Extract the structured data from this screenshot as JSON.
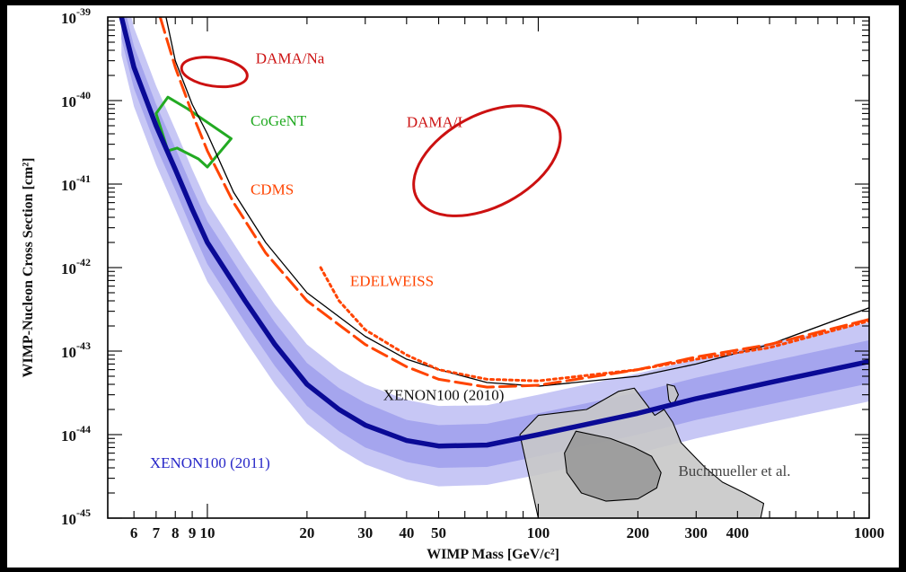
{
  "chart_data": {
    "type": "line",
    "xscale": "log",
    "yscale": "log",
    "xlim": [
      5,
      1000
    ],
    "ylim": [
      1e-45,
      1e-39
    ],
    "xlabel": "WIMP Mass [GeV/c²]",
    "ylabel": "WIMP-Nucleon Cross Section [cm²]",
    "x_ticks": [
      "6",
      "7",
      "8",
      "9",
      "10",
      "20",
      "30",
      "40",
      "50",
      "100",
      "200",
      "300",
      "400",
      "1000"
    ],
    "y_ticks": [
      {
        "base": "10",
        "exp": "-39"
      },
      {
        "base": "10",
        "exp": "-40"
      },
      {
        "base": "10",
        "exp": "-41"
      },
      {
        "base": "10",
        "exp": "-42"
      },
      {
        "base": "10",
        "exp": "-43"
      },
      {
        "base": "10",
        "exp": "-44"
      },
      {
        "base": "10",
        "exp": "-45"
      }
    ],
    "series": [
      {
        "name": "XENON100 (2011)",
        "color": "#0a0a96",
        "style": "thick",
        "points": [
          [
            5.5,
            1e-39
          ],
          [
            6,
            2.5e-40
          ],
          [
            7,
            5e-41
          ],
          [
            8,
            1.5e-41
          ],
          [
            9,
            5e-42
          ],
          [
            10,
            2e-42
          ],
          [
            13,
            4e-43
          ],
          [
            16,
            1.2e-43
          ],
          [
            20,
            4e-44
          ],
          [
            25,
            2e-44
          ],
          [
            30,
            1.3e-44
          ],
          [
            40,
            8.5e-45
          ],
          [
            50,
            7.3e-45
          ],
          [
            70,
            7.5e-45
          ],
          [
            100,
            1e-44
          ],
          [
            200,
            1.8e-44
          ],
          [
            300,
            2.7e-44
          ],
          [
            500,
            4.2e-44
          ],
          [
            1000,
            7.5e-44
          ]
        ],
        "band_1sigma": [
          [
            5.5,
            1.8e-39,
            5.5e-40
          ],
          [
            6,
            4.5e-40,
            1.4e-40
          ],
          [
            7,
            9e-41,
            2.8e-41
          ],
          [
            8,
            2.7e-41,
            8.5e-42
          ],
          [
            9,
            9e-42,
            2.8e-42
          ],
          [
            10,
            3.6e-42,
            1.1e-42
          ],
          [
            13,
            7.2e-43,
            2.2e-43
          ],
          [
            16,
            2.2e-43,
            6.6e-44
          ],
          [
            20,
            7.2e-44,
            2.2e-44
          ],
          [
            25,
            3.6e-44,
            1.1e-44
          ],
          [
            30,
            2.4e-44,
            7e-45
          ],
          [
            40,
            1.5e-44,
            4.7e-45
          ],
          [
            50,
            1.3e-44,
            4e-45
          ],
          [
            70,
            1.35e-44,
            4.1e-45
          ],
          [
            100,
            1.8e-44,
            5.5e-45
          ],
          [
            200,
            3.2e-44,
            1e-44
          ],
          [
            300,
            4.8e-44,
            1.5e-44
          ],
          [
            500,
            7.5e-44,
            2.3e-44
          ],
          [
            1000,
            1.35e-43,
            4.1e-44
          ]
        ],
        "band_2sigma": [
          [
            5.5,
            3e-39,
            3.5e-40
          ],
          [
            6,
            7.5e-40,
            8.5e-41
          ],
          [
            7,
            1.5e-40,
            1.7e-41
          ],
          [
            8,
            4.5e-41,
            5e-42
          ],
          [
            9,
            1.5e-41,
            1.7e-42
          ],
          [
            10,
            6e-42,
            6.8e-43
          ],
          [
            13,
            1.2e-42,
            1.35e-43
          ],
          [
            16,
            3.6e-43,
            4e-44
          ],
          [
            20,
            1.2e-43,
            1.35e-44
          ],
          [
            25,
            6e-44,
            6.8e-45
          ],
          [
            30,
            4e-44,
            4.4e-45
          ],
          [
            40,
            2.6e-44,
            2.9e-45
          ],
          [
            50,
            2.2e-44,
            2.4e-45
          ],
          [
            70,
            2.25e-44,
            2.5e-45
          ],
          [
            100,
            3e-44,
            3.3e-45
          ],
          [
            200,
            5.4e-44,
            6e-45
          ],
          [
            300,
            8e-44,
            9e-45
          ],
          [
            500,
            1.25e-43,
            1.4e-44
          ],
          [
            1000,
            2.2e-43,
            2.5e-44
          ]
        ]
      },
      {
        "name": "XENON100 (2010)",
        "color": "#000000",
        "style": "thin",
        "points": [
          [
            7.5,
            1e-39
          ],
          [
            8,
            3e-40
          ],
          [
            9,
            9e-41
          ],
          [
            10,
            4e-41
          ],
          [
            12,
            8e-42
          ],
          [
            15,
            2e-42
          ],
          [
            20,
            5e-43
          ],
          [
            30,
            1.5e-43
          ],
          [
            40,
            8e-44
          ],
          [
            50,
            6e-44
          ],
          [
            70,
            4.2e-44
          ],
          [
            100,
            3.8e-44
          ],
          [
            200,
            5e-44
          ],
          [
            300,
            7e-44
          ],
          [
            500,
            1.2e-43
          ],
          [
            1000,
            3.3e-43
          ]
        ]
      },
      {
        "name": "CDMS",
        "color": "#ff4400",
        "style": "dashed",
        "points": [
          [
            7.2,
            1e-39
          ],
          [
            8,
            2.5e-40
          ],
          [
            9,
            7e-41
          ],
          [
            10,
            2.5e-41
          ],
          [
            12,
            6e-42
          ],
          [
            15,
            1.5e-42
          ],
          [
            20,
            4e-43
          ],
          [
            30,
            1.2e-43
          ],
          [
            40,
            6.5e-44
          ],
          [
            50,
            4.6e-44
          ],
          [
            70,
            3.7e-44
          ],
          [
            100,
            3.9e-44
          ],
          [
            200,
            6e-44
          ],
          [
            300,
            8.5e-44
          ],
          [
            500,
            1.2e-43
          ],
          [
            1000,
            2.4e-43
          ]
        ]
      },
      {
        "name": "EDELWEISS",
        "color": "#ff4400",
        "style": "dotted",
        "points": [
          [
            22,
            1e-42
          ],
          [
            25,
            4e-43
          ],
          [
            30,
            1.8e-43
          ],
          [
            40,
            9e-44
          ],
          [
            50,
            6e-44
          ],
          [
            70,
            4.6e-44
          ],
          [
            100,
            4.4e-44
          ],
          [
            200,
            6e-44
          ],
          [
            300,
            8e-44
          ],
          [
            500,
            1.1e-43
          ],
          [
            1000,
            2.3e-43
          ]
        ]
      }
    ],
    "regions": [
      {
        "name": "DAMA/Na",
        "color": "#cc1111",
        "center": [
          10.5,
          2.2e-40
        ],
        "half_width_dex": 0.1,
        "half_height_dex": 0.17
      },
      {
        "name": "DAMA/I",
        "color": "#cc1111",
        "center": [
          70,
          1.9e-41
        ],
        "half_width_dex": 0.24,
        "half_height_dex": 0.55
      },
      {
        "name": "CoGeNT",
        "color": "#22aa22",
        "polygon": [
          [
            7.0,
            7e-41
          ],
          [
            7.6,
            1.1e-40
          ],
          [
            8.7,
            8e-41
          ],
          [
            11.8,
            3.5e-41
          ],
          [
            10.0,
            1.6e-41
          ],
          [
            9.4,
            2e-41
          ],
          [
            8.1,
            2.7e-41
          ],
          [
            7.6,
            2.5e-41
          ]
        ]
      },
      {
        "name": "Buchmueller et al.",
        "color": "#c8c8c8",
        "polygon": [
          [
            100,
            1.7e-44
          ],
          [
            140,
            2e-44
          ],
          [
            175,
            3.3e-44
          ],
          [
            195,
            3.6e-44
          ],
          [
            225,
            1.7e-44
          ],
          [
            240,
            2e-44
          ],
          [
            255,
            1.4e-44
          ],
          [
            270,
            8e-45
          ],
          [
            320,
            4e-45
          ],
          [
            360,
            2.7e-45
          ],
          [
            420,
            2e-45
          ],
          [
            480,
            1.5e-45
          ],
          [
            470,
            1e-45
          ],
          [
            100,
            1e-45
          ],
          [
            88,
            1e-44
          ]
        ]
      },
      {
        "name": "",
        "color": "#999999",
        "polygon": [
          [
            130,
            1.1e-44
          ],
          [
            165,
            9e-45
          ],
          [
            195,
            7e-45
          ],
          [
            220,
            5.5e-45
          ],
          [
            235,
            3.5e-45
          ],
          [
            228,
            2.3e-45
          ],
          [
            200,
            1.7e-45
          ],
          [
            160,
            1.6e-45
          ],
          [
            135,
            2e-45
          ],
          [
            122,
            3.5e-45
          ],
          [
            120,
            6e-45
          ]
        ]
      },
      {
        "name": "",
        "color": "#c8c8c8",
        "polygon": [
          [
            245,
            4e-44
          ],
          [
            258,
            3.8e-44
          ],
          [
            265,
            3e-44
          ],
          [
            255,
            2.2e-44
          ],
          [
            248,
            2.6e-44
          ]
        ]
      }
    ],
    "labels": [
      {
        "text": "DAMA/Na",
        "color": "#cc1111",
        "at": [
          14,
          2.8e-40
        ]
      },
      {
        "text": "CoGeNT",
        "color": "#22aa22",
        "at": [
          13.5,
          5e-41
        ]
      },
      {
        "text": "DAMA/I",
        "color": "#cc1111",
        "at": [
          40,
          4.8e-41
        ]
      },
      {
        "text": "CDMS",
        "color": "#ff4400",
        "at": [
          13.5,
          7.5e-42
        ]
      },
      {
        "text": "EDELWEISS",
        "color": "#ff4400",
        "at": [
          27,
          6e-43
        ]
      },
      {
        "text": "XENON100 (2010)",
        "color": "#111111",
        "at": [
          34,
          2.6e-44
        ]
      },
      {
        "text": "XENON100 (2011)",
        "color": "#2828c8",
        "at": [
          6.7,
          4e-45
        ]
      },
      {
        "text": "Buchmueller et al.",
        "color": "#444444",
        "at": [
          265,
          3.2e-45
        ]
      }
    ]
  }
}
